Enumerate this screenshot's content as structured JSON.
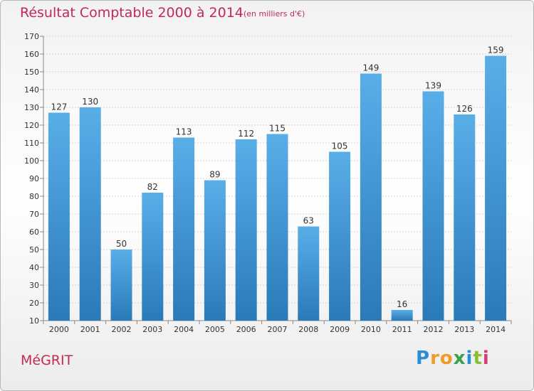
{
  "chart_data": {
    "type": "bar",
    "title": "Résultat Comptable 2000 à 2014",
    "subtitle": "(en milliers d'€)",
    "categories": [
      "2000",
      "2001",
      "2002",
      "2003",
      "2004",
      "2005",
      "2006",
      "2007",
      "2008",
      "2009",
      "2010",
      "2011",
      "2012",
      "2013",
      "2014"
    ],
    "values": [
      127,
      130,
      50,
      82,
      113,
      89,
      112,
      115,
      63,
      105,
      149,
      16,
      139,
      126,
      159
    ],
    "ylim": [
      10,
      170
    ],
    "yticks": [
      10,
      20,
      30,
      40,
      50,
      60,
      70,
      80,
      90,
      100,
      110,
      120,
      130,
      140,
      150,
      160,
      170
    ],
    "grid": true,
    "bar_color_top": "#5aaee8",
    "bar_color_bottom": "#2a7ab8"
  },
  "commune": "MéGRIT",
  "logo": {
    "letters": [
      "P",
      "r",
      "o",
      "x",
      "i",
      "t",
      "i"
    ],
    "colors": [
      "#2a8fd0",
      "#f19a2a",
      "#f19a2a",
      "#3aa14a",
      "#2a8fd0",
      "#8cbd2e",
      "#d43d7a"
    ]
  }
}
